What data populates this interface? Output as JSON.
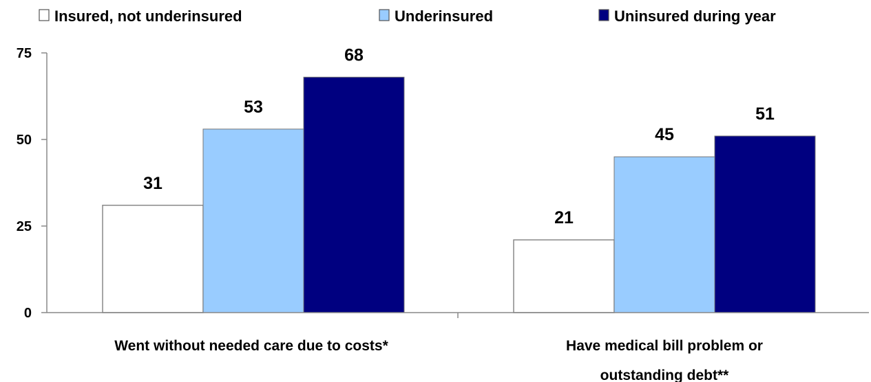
{
  "chart_data": {
    "type": "bar",
    "categories": [
      [
        "Went without needed care due to costs*"
      ],
      [
        "Have medical bill problem or",
        "outstanding debt**"
      ]
    ],
    "series": [
      {
        "name": "Insured, not underinsured",
        "color": "#ffffff",
        "values": [
          31,
          21
        ]
      },
      {
        "name": "Underinsured",
        "color": "#99ccff",
        "values": [
          53,
          45
        ]
      },
      {
        "name": "Uninsured during year",
        "color": "#000080",
        "values": [
          68,
          51
        ]
      }
    ],
    "ylim": [
      0,
      75
    ],
    "yticks": [
      0,
      25,
      50,
      75
    ],
    "legend_position": "top",
    "grid": false
  }
}
